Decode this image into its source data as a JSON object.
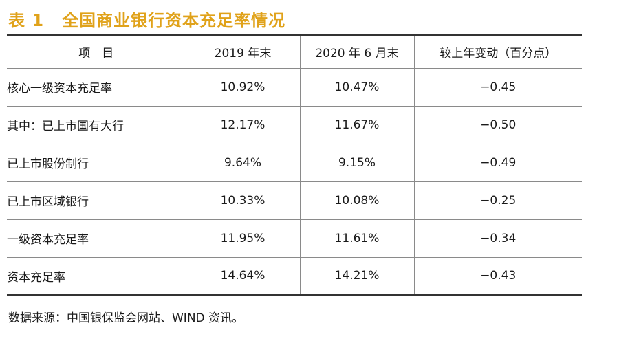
{
  "title": {
    "number": "表 1",
    "text": "全国商业银行资本充足率情况"
  },
  "table": {
    "headers": [
      "项　目",
      "2019 年末",
      "2020 年 6 月末",
      "较上年变动（百分点）"
    ],
    "rows": [
      {
        "label": "核心一级资本充足率",
        "v2019": "10.92%",
        "v2020": "10.47%",
        "change": "−0.45"
      },
      {
        "label": "其中：已上市国有大行",
        "v2019": "12.17%",
        "v2020": "11.67%",
        "change": "−0.50"
      },
      {
        "label": "已上市股份制行",
        "v2019": "9.64%",
        "v2020": "9.15%",
        "change": "−0.49"
      },
      {
        "label": "已上市区域银行",
        "v2019": "10.33%",
        "v2020": "10.08%",
        "change": "−0.25"
      },
      {
        "label": "一级资本充足率",
        "v2019": "11.95%",
        "v2020": "11.61%",
        "change": "−0.34"
      },
      {
        "label": "资本充足率",
        "v2019": "14.64%",
        "v2020": "14.21%",
        "change": "−0.43"
      }
    ]
  },
  "source": "数据来源：中国银保监会网站、WIND 资讯。",
  "colors": {
    "title": "#e0a21a",
    "rule": "#333333",
    "grid": "#8a8a8a"
  }
}
